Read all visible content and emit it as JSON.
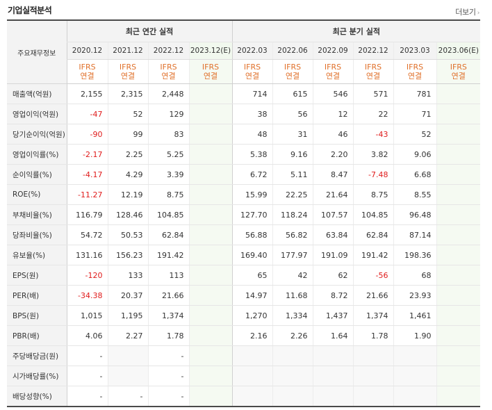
{
  "header": {
    "title": "기업실적분석",
    "more_label": "더보기",
    "more_arrow": "›"
  },
  "table": {
    "label_header": "주요재무정보",
    "group_annual": "최근 연간 실적",
    "group_quarter": "최근 분기 실적",
    "annual_periods": [
      "2020.12",
      "2021.12",
      "2022.12",
      "2023.12(E)"
    ],
    "quarter_periods": [
      "2022.03",
      "2022.06",
      "2022.09",
      "2022.12",
      "2023.03",
      "2023.06(E)"
    ],
    "basis_line1": "IFRS",
    "basis_line2": "연결",
    "rows": [
      {
        "label": "매출액(억원)",
        "annual": [
          "2,155",
          "2,315",
          "2,448",
          ""
        ],
        "quarter": [
          "714",
          "615",
          "546",
          "571",
          "781",
          ""
        ]
      },
      {
        "label": "영업이익(억원)",
        "annual": [
          "-47",
          "52",
          "129",
          ""
        ],
        "quarter": [
          "38",
          "56",
          "12",
          "22",
          "71",
          ""
        ]
      },
      {
        "label": "당기순이익(억원)",
        "annual": [
          "-90",
          "99",
          "83",
          ""
        ],
        "quarter": [
          "48",
          "31",
          "46",
          "-43",
          "52",
          ""
        ]
      },
      {
        "label": "영업이익률(%)",
        "annual": [
          "-2.17",
          "2.25",
          "5.25",
          ""
        ],
        "quarter": [
          "5.38",
          "9.16",
          "2.20",
          "3.82",
          "9.06",
          ""
        ]
      },
      {
        "label": "순이익률(%)",
        "annual": [
          "-4.17",
          "4.29",
          "3.39",
          ""
        ],
        "quarter": [
          "6.72",
          "5.11",
          "8.47",
          "-7.48",
          "6.68",
          ""
        ]
      },
      {
        "label": "ROE(%)",
        "annual": [
          "-11.27",
          "12.19",
          "8.75",
          ""
        ],
        "quarter": [
          "15.99",
          "22.25",
          "21.64",
          "8.75",
          "8.55",
          ""
        ]
      },
      {
        "label": "부채비율(%)",
        "annual": [
          "116.79",
          "128.46",
          "104.85",
          ""
        ],
        "quarter": [
          "127.70",
          "118.24",
          "107.57",
          "104.85",
          "96.48",
          ""
        ]
      },
      {
        "label": "당좌비율(%)",
        "annual": [
          "54.72",
          "50.53",
          "62.84",
          ""
        ],
        "quarter": [
          "56.88",
          "56.82",
          "63.84",
          "62.84",
          "87.14",
          ""
        ]
      },
      {
        "label": "유보율(%)",
        "annual": [
          "131.16",
          "156.23",
          "191.42",
          ""
        ],
        "quarter": [
          "169.40",
          "177.97",
          "191.09",
          "191.42",
          "198.36",
          ""
        ]
      },
      {
        "label": "EPS(원)",
        "annual": [
          "-120",
          "133",
          "113",
          ""
        ],
        "quarter": [
          "65",
          "42",
          "62",
          "-56",
          "68",
          ""
        ]
      },
      {
        "label": "PER(배)",
        "annual": [
          "-34.38",
          "20.37",
          "21.66",
          ""
        ],
        "quarter": [
          "14.97",
          "11.68",
          "8.72",
          "21.66",
          "23.93",
          ""
        ]
      },
      {
        "label": "BPS(원)",
        "annual": [
          "1,015",
          "1,195",
          "1,374",
          ""
        ],
        "quarter": [
          "1,270",
          "1,334",
          "1,437",
          "1,374",
          "1,461",
          ""
        ]
      },
      {
        "label": "PBR(배)",
        "annual": [
          "4.06",
          "2.27",
          "1.78",
          ""
        ],
        "quarter": [
          "2.16",
          "2.26",
          "1.64",
          "1.78",
          "1.90",
          ""
        ]
      },
      {
        "label": "주당배당금(원)",
        "annual": [
          "-",
          "",
          "-",
          ""
        ],
        "quarter": [
          "",
          "",
          "",
          "",
          "",
          ""
        ]
      },
      {
        "label": "시가배당률(%)",
        "annual": [
          "-",
          "",
          "-",
          ""
        ],
        "quarter": [
          "",
          "",
          "",
          "",
          "",
          ""
        ]
      },
      {
        "label": "배당성향(%)",
        "annual": [
          "-",
          "-",
          "-",
          ""
        ],
        "quarter": [
          "",
          "",
          "",
          "",
          "",
          ""
        ]
      }
    ]
  }
}
